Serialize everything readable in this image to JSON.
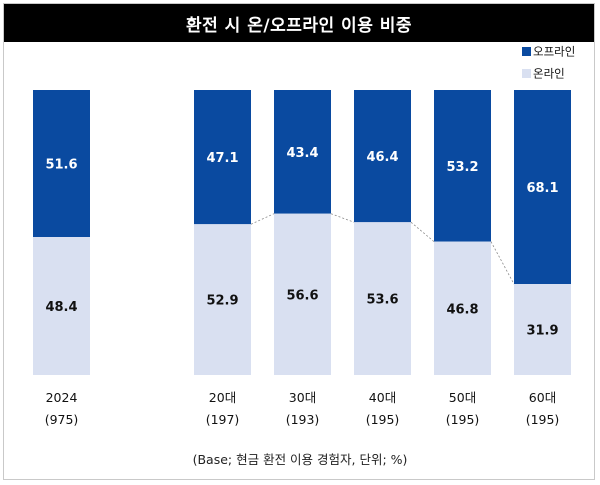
{
  "title": "환전 시 온/오프라인 이용 비중",
  "footnote": "(Base; 현금 환전 이용 경험자, 단위; %)",
  "colors": {
    "offline": "#0a4aa0",
    "online": "#d9e0f1"
  },
  "chart_data": {
    "type": "bar",
    "stacked": true,
    "percent": true,
    "categories": [
      "2024",
      "20대",
      "30대",
      "40대",
      "50대",
      "60대"
    ],
    "sublabels": [
      "(975)",
      "(197)",
      "(193)",
      "(195)",
      "(195)",
      "(195)"
    ],
    "series": [
      {
        "name": "오프라인",
        "values": [
          51.6,
          47.1,
          43.4,
          46.4,
          53.2,
          68.1
        ]
      },
      {
        "name": "온라인",
        "values": [
          48.4,
          52.9,
          56.6,
          53.6,
          46.8,
          31.9
        ]
      }
    ],
    "ylim": [
      0,
      100
    ],
    "legend": "top-right",
    "grid": false
  }
}
